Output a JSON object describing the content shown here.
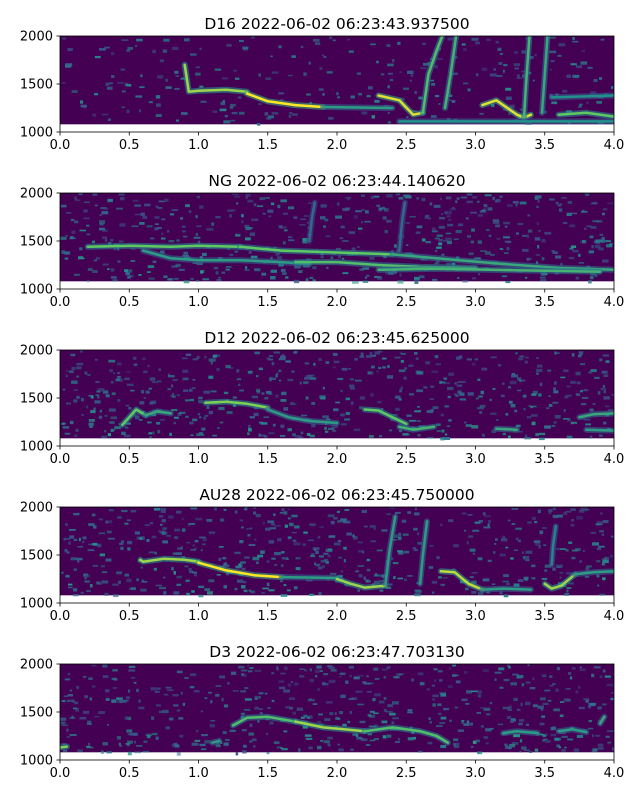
{
  "figure": {
    "colormap": [
      "#440154",
      "#3b528b",
      "#21918c",
      "#5ec962",
      "#fde725"
    ],
    "axis_color": "#000000"
  },
  "chart_data": [
    {
      "type": "heatmap",
      "title": "D16 2022-06-02 06:23:43.937500",
      "xlim": [
        0.0,
        4.0
      ],
      "ylim": [
        1000,
        2000
      ],
      "x_ticks": [
        0.0,
        0.5,
        1.0,
        1.5,
        2.0,
        2.5,
        3.0,
        3.5,
        4.0
      ],
      "x_tick_labels": [
        "0.0",
        "0.5",
        "1.0",
        "1.5",
        "2.0",
        "2.5",
        "3.0",
        "3.5",
        "4.0"
      ],
      "y_ticks": [
        1000,
        1500,
        2000
      ],
      "y_tick_labels": [
        "1000",
        "1500",
        "2000"
      ],
      "data_range": {
        "freq_min": 1080,
        "freq_max": 2000
      },
      "tracks": [
        {
          "x": [
            0.9,
            0.93,
            1.0,
            1.2,
            1.35
          ],
          "y": [
            1700,
            1420,
            1430,
            1440,
            1420
          ],
          "intensity": 0.85
        },
        {
          "x": [
            1.35,
            1.5,
            1.7,
            1.9
          ],
          "y": [
            1400,
            1320,
            1280,
            1260
          ],
          "intensity": 1.0
        },
        {
          "x": [
            1.9,
            2.4
          ],
          "y": [
            1260,
            1250
          ],
          "intensity": 0.55
        },
        {
          "x": [
            2.3,
            2.45,
            2.55,
            2.62
          ],
          "y": [
            1380,
            1330,
            1180,
            1200
          ],
          "intensity": 0.95
        },
        {
          "x": [
            2.62,
            2.66,
            2.72,
            2.76
          ],
          "y": [
            1200,
            1600,
            1850,
            2000
          ],
          "intensity": 0.7
        },
        {
          "x": [
            2.78,
            2.82,
            2.86
          ],
          "y": [
            1250,
            1600,
            2000
          ],
          "intensity": 0.65
        },
        {
          "x": [
            3.05,
            3.15,
            3.3,
            3.35,
            3.4
          ],
          "y": [
            1280,
            1330,
            1180,
            1150,
            1180
          ],
          "intensity": 0.95
        },
        {
          "x": [
            3.35,
            3.37,
            3.39
          ],
          "y": [
            1150,
            1600,
            2000
          ],
          "intensity": 0.65
        },
        {
          "x": [
            3.48,
            3.5,
            3.52
          ],
          "y": [
            1200,
            1600,
            2000
          ],
          "intensity": 0.6
        },
        {
          "x": [
            3.6,
            3.8,
            4.0
          ],
          "y": [
            1180,
            1200,
            1160
          ],
          "intensity": 0.75
        },
        {
          "x": [
            2.45,
            4.0
          ],
          "y": [
            1110,
            1110
          ],
          "intensity": 0.5
        },
        {
          "x": [
            3.55,
            4.0
          ],
          "y": [
            1360,
            1380
          ],
          "intensity": 0.5
        }
      ]
    },
    {
      "type": "heatmap",
      "title": "NG 2022-06-02 06:23:44.140620",
      "xlim": [
        0.0,
        4.0
      ],
      "ylim": [
        1000,
        2000
      ],
      "x_ticks": [
        0.0,
        0.5,
        1.0,
        1.5,
        2.0,
        2.5,
        3.0,
        3.5,
        4.0
      ],
      "x_tick_labels": [
        "0.0",
        "0.5",
        "1.0",
        "1.5",
        "2.0",
        "2.5",
        "3.0",
        "3.5",
        "4.0"
      ],
      "y_ticks": [
        1000,
        1500,
        2000
      ],
      "y_tick_labels": [
        "1000",
        "1500",
        "2000"
      ],
      "data_range": {
        "freq_min": 1080,
        "freq_max": 2000
      },
      "tracks": [
        {
          "x": [
            0.2,
            0.5,
            0.8,
            1.0,
            1.3
          ],
          "y": [
            1440,
            1450,
            1440,
            1450,
            1440
          ],
          "intensity": 0.75
        },
        {
          "x": [
            0.6,
            0.8,
            1.0,
            1.3,
            1.6,
            1.8
          ],
          "y": [
            1400,
            1320,
            1300,
            1300,
            1280,
            1260
          ],
          "intensity": 0.55
        },
        {
          "x": [
            1.3,
            1.6,
            2.0,
            2.4
          ],
          "y": [
            1440,
            1400,
            1380,
            1360
          ],
          "intensity": 0.75
        },
        {
          "x": [
            1.7,
            2.0,
            2.3,
            2.6,
            3.0
          ],
          "y": [
            1280,
            1280,
            1250,
            1230,
            1220
          ],
          "intensity": 0.7
        },
        {
          "x": [
            2.4,
            2.8,
            3.2,
            3.6,
            4.0
          ],
          "y": [
            1360,
            1310,
            1260,
            1220,
            1200
          ],
          "intensity": 0.6
        },
        {
          "x": [
            2.3,
            2.7,
            3.1,
            3.5,
            3.9
          ],
          "y": [
            1200,
            1210,
            1200,
            1190,
            1180
          ],
          "intensity": 0.65
        },
        {
          "x": [
            1.8,
            1.82,
            1.84
          ],
          "y": [
            1500,
            1750,
            1900
          ],
          "intensity": 0.35
        },
        {
          "x": [
            2.45,
            2.47,
            2.49
          ],
          "y": [
            1400,
            1700,
            1900
          ],
          "intensity": 0.35
        }
      ]
    },
    {
      "type": "heatmap",
      "title": "D12 2022-06-02 06:23:45.625000",
      "xlim": [
        0.0,
        4.0
      ],
      "ylim": [
        1000,
        2000
      ],
      "x_ticks": [
        0.0,
        0.5,
        1.0,
        1.5,
        2.0,
        2.5,
        3.0,
        3.5,
        4.0
      ],
      "x_tick_labels": [
        "0.0",
        "0.5",
        "1.0",
        "1.5",
        "2.0",
        "2.5",
        "3.0",
        "3.5",
        "4.0"
      ],
      "y_ticks": [
        1000,
        1500,
        2000
      ],
      "y_tick_labels": [
        "1000",
        "1500",
        "2000"
      ],
      "data_range": {
        "freq_min": 1080,
        "freq_max": 2000
      },
      "tracks": [
        {
          "x": [
            0.45,
            0.5,
            0.55,
            0.62
          ],
          "y": [
            1220,
            1300,
            1380,
            1320
          ],
          "intensity": 0.75
        },
        {
          "x": [
            0.62,
            0.7,
            0.8
          ],
          "y": [
            1320,
            1360,
            1340
          ],
          "intensity": 0.6
        },
        {
          "x": [
            1.05,
            1.2,
            1.35,
            1.5
          ],
          "y": [
            1450,
            1460,
            1440,
            1400
          ],
          "intensity": 0.8
        },
        {
          "x": [
            1.5,
            1.65,
            1.8,
            2.0
          ],
          "y": [
            1380,
            1300,
            1260,
            1240
          ],
          "intensity": 0.55
        },
        {
          "x": [
            2.2,
            2.3,
            2.4,
            2.5
          ],
          "y": [
            1380,
            1370,
            1300,
            1230
          ],
          "intensity": 0.75
        },
        {
          "x": [
            2.45,
            2.55,
            2.7
          ],
          "y": [
            1200,
            1170,
            1200
          ],
          "intensity": 0.65
        },
        {
          "x": [
            3.15,
            3.3
          ],
          "y": [
            1180,
            1170
          ],
          "intensity": 0.6
        },
        {
          "x": [
            3.75,
            3.85,
            4.0
          ],
          "y": [
            1300,
            1330,
            1340
          ],
          "intensity": 0.6
        },
        {
          "x": [
            3.8,
            4.0
          ],
          "y": [
            1170,
            1160
          ],
          "intensity": 0.55
        }
      ]
    },
    {
      "type": "heatmap",
      "title": "AU28 2022-06-02 06:23:45.750000",
      "xlim": [
        0.0,
        4.0
      ],
      "ylim": [
        1000,
        2000
      ],
      "x_ticks": [
        0.0,
        0.5,
        1.0,
        1.5,
        2.0,
        2.5,
        3.0,
        3.5,
        4.0
      ],
      "x_tick_labels": [
        "0.0",
        "0.5",
        "1.0",
        "1.5",
        "2.0",
        "2.5",
        "3.0",
        "3.5",
        "4.0"
      ],
      "y_ticks": [
        1000,
        1500,
        2000
      ],
      "y_tick_labels": [
        "1000",
        "1500",
        "2000"
      ],
      "data_range": {
        "freq_min": 1080,
        "freq_max": 2000
      },
      "tracks": [
        {
          "x": [
            0.58,
            0.6,
            0.75,
            0.9,
            1.0
          ],
          "y": [
            1450,
            1430,
            1460,
            1450,
            1430
          ],
          "intensity": 0.85
        },
        {
          "x": [
            1.0,
            1.2,
            1.4,
            1.6
          ],
          "y": [
            1420,
            1340,
            1290,
            1270
          ],
          "intensity": 1.0
        },
        {
          "x": [
            1.6,
            2.0
          ],
          "y": [
            1270,
            1260
          ],
          "intensity": 0.55
        },
        {
          "x": [
            2.0,
            2.1,
            2.2,
            2.35
          ],
          "y": [
            1250,
            1200,
            1160,
            1180
          ],
          "intensity": 0.85
        },
        {
          "x": [
            2.35,
            2.38,
            2.42
          ],
          "y": [
            1200,
            1550,
            1900
          ],
          "intensity": 0.55
        },
        {
          "x": [
            2.6,
            2.62,
            2.65
          ],
          "y": [
            1200,
            1500,
            1850
          ],
          "intensity": 0.55
        },
        {
          "x": [
            2.75,
            2.85,
            2.95,
            3.05
          ],
          "y": [
            1330,
            1320,
            1200,
            1140
          ],
          "intensity": 0.9
        },
        {
          "x": [
            3.05,
            3.2,
            3.4
          ],
          "y": [
            1140,
            1150,
            1140
          ],
          "intensity": 0.55
        },
        {
          "x": [
            3.5,
            3.55,
            3.62,
            3.72
          ],
          "y": [
            1200,
            1150,
            1180,
            1300
          ],
          "intensity": 0.85
        },
        {
          "x": [
            3.72,
            3.85,
            4.0
          ],
          "y": [
            1300,
            1320,
            1330
          ],
          "intensity": 0.55
        },
        {
          "x": [
            3.55,
            3.56,
            3.58
          ],
          "y": [
            1400,
            1600,
            1800
          ],
          "intensity": 0.45
        }
      ]
    },
    {
      "type": "heatmap",
      "title": "D3 2022-06-02 06:23:47.703130",
      "xlim": [
        0.0,
        4.0
      ],
      "ylim": [
        1000,
        2000
      ],
      "x_ticks": [
        0.0,
        0.5,
        1.0,
        1.5,
        2.0,
        2.5,
        3.0,
        3.5,
        4.0
      ],
      "x_tick_labels": [
        "0.0",
        "0.5",
        "1.0",
        "1.5",
        "2.0",
        "2.5",
        "3.0",
        "3.5",
        "4.0"
      ],
      "y_ticks": [
        1000,
        1500,
        2000
      ],
      "y_tick_labels": [
        "1000",
        "1500",
        "2000"
      ],
      "data_range": {
        "freq_min": 1080,
        "freq_max": 2000
      },
      "tracks": [
        {
          "x": [
            0.0,
            0.05
          ],
          "y": [
            1130,
            1140
          ],
          "intensity": 0.8
        },
        {
          "x": [
            1.1,
            1.15
          ],
          "y": [
            1180,
            1200
          ],
          "intensity": 0.55
        },
        {
          "x": [
            1.25,
            1.35,
            1.5,
            1.7
          ],
          "y": [
            1360,
            1440,
            1450,
            1400
          ],
          "intensity": 0.7
        },
        {
          "x": [
            1.7,
            1.9,
            2.05,
            2.2
          ],
          "y": [
            1400,
            1340,
            1320,
            1300
          ],
          "intensity": 0.85
        },
        {
          "x": [
            2.2,
            2.4,
            2.6,
            2.72,
            2.8
          ],
          "y": [
            1300,
            1340,
            1300,
            1250,
            1180
          ],
          "intensity": 0.7
        },
        {
          "x": [
            3.2,
            3.3,
            3.45
          ],
          "y": [
            1280,
            1300,
            1280
          ],
          "intensity": 0.55
        },
        {
          "x": [
            3.6,
            3.7,
            3.8
          ],
          "y": [
            1300,
            1320,
            1290
          ],
          "intensity": 0.55
        },
        {
          "x": [
            3.9,
            3.93
          ],
          "y": [
            1380,
            1450
          ],
          "intensity": 0.6
        }
      ]
    }
  ]
}
